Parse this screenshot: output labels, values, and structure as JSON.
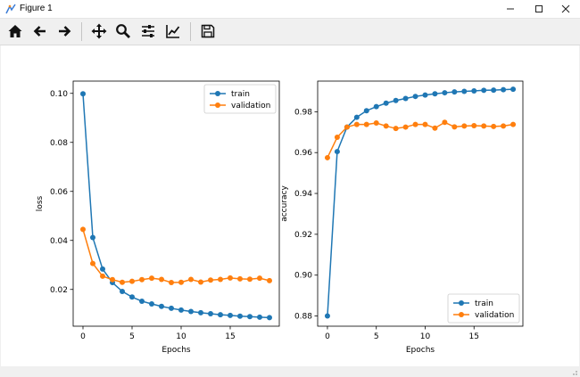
{
  "window": {
    "title": "Figure 1"
  },
  "toolbar": {
    "buttons": [
      {
        "name": "home-button",
        "icon": "home-icon"
      },
      {
        "name": "back-button",
        "icon": "arrow-left-icon"
      },
      {
        "name": "forward-button",
        "icon": "arrow-right-icon"
      },
      {
        "name": "pan-button",
        "icon": "move-icon"
      },
      {
        "name": "zoom-button",
        "icon": "magnifier-icon"
      },
      {
        "name": "subplots-button",
        "icon": "sliders-icon"
      },
      {
        "name": "edit-axes-button",
        "icon": "line-chart-icon"
      },
      {
        "name": "save-button",
        "icon": "floppy-disk-icon"
      }
    ]
  },
  "colors": {
    "train": "#1f77b4",
    "validation": "#ff7f0e"
  },
  "chart_data": [
    {
      "type": "line",
      "xlabel": "Epochs",
      "ylabel": "loss",
      "xlim": [
        -1,
        20
      ],
      "ylim": [
        0.005,
        0.105
      ],
      "xticks": [
        0,
        5,
        10,
        15
      ],
      "yticks": [
        0.02,
        0.04,
        0.06,
        0.08,
        0.1
      ],
      "ytick_labels": [
        "0.02",
        "0.04",
        "0.06",
        "0.08",
        "0.10"
      ],
      "grid": false,
      "legend_position": "top-right",
      "x": [
        0,
        1,
        2,
        3,
        4,
        5,
        6,
        7,
        8,
        9,
        10,
        11,
        12,
        13,
        14,
        15,
        16,
        17,
        18,
        19
      ],
      "series": [
        {
          "name": "train",
          "color": "#1f77b4",
          "values": [
            0.0998,
            0.0412,
            0.0283,
            0.0228,
            0.0192,
            0.0169,
            0.0152,
            0.0141,
            0.0131,
            0.0123,
            0.0116,
            0.011,
            0.0105,
            0.0101,
            0.0097,
            0.0094,
            0.0091,
            0.0089,
            0.0087,
            0.0085
          ]
        },
        {
          "name": "validation",
          "color": "#ff7f0e",
          "values": [
            0.0445,
            0.0306,
            0.0254,
            0.024,
            0.0229,
            0.0233,
            0.024,
            0.0246,
            0.0241,
            0.0228,
            0.0229,
            0.0241,
            0.023,
            0.0238,
            0.0241,
            0.0247,
            0.0243,
            0.0242,
            0.0246,
            0.0236
          ]
        }
      ]
    },
    {
      "type": "line",
      "xlabel": "Epochs",
      "ylabel": "accuracy",
      "xlim": [
        -1,
        20
      ],
      "ylim": [
        0.875,
        0.995
      ],
      "xticks": [
        0,
        5,
        10,
        15
      ],
      "yticks": [
        0.88,
        0.9,
        0.92,
        0.94,
        0.96,
        0.98
      ],
      "ytick_labels": [
        "0.88",
        "0.90",
        "0.92",
        "0.94",
        "0.96",
        "0.98"
      ],
      "grid": false,
      "legend_position": "bottom-right",
      "x": [
        0,
        1,
        2,
        3,
        4,
        5,
        6,
        7,
        8,
        9,
        10,
        11,
        12,
        13,
        14,
        15,
        16,
        17,
        18,
        19
      ],
      "series": [
        {
          "name": "train",
          "color": "#1f77b4",
          "values": [
            0.88,
            0.9605,
            0.9725,
            0.9773,
            0.9805,
            0.9825,
            0.9842,
            0.9855,
            0.9865,
            0.9875,
            0.9882,
            0.9888,
            0.9893,
            0.9897,
            0.99,
            0.9902,
            0.9905,
            0.9906,
            0.9908,
            0.991
          ]
        },
        {
          "name": "validation",
          "color": "#ff7f0e",
          "values": [
            0.9575,
            0.9675,
            0.9725,
            0.9738,
            0.9738,
            0.9745,
            0.973,
            0.9718,
            0.9725,
            0.9738,
            0.9738,
            0.972,
            0.9748,
            0.9726,
            0.973,
            0.9732,
            0.973,
            0.9728,
            0.973,
            0.9738
          ]
        }
      ]
    }
  ]
}
